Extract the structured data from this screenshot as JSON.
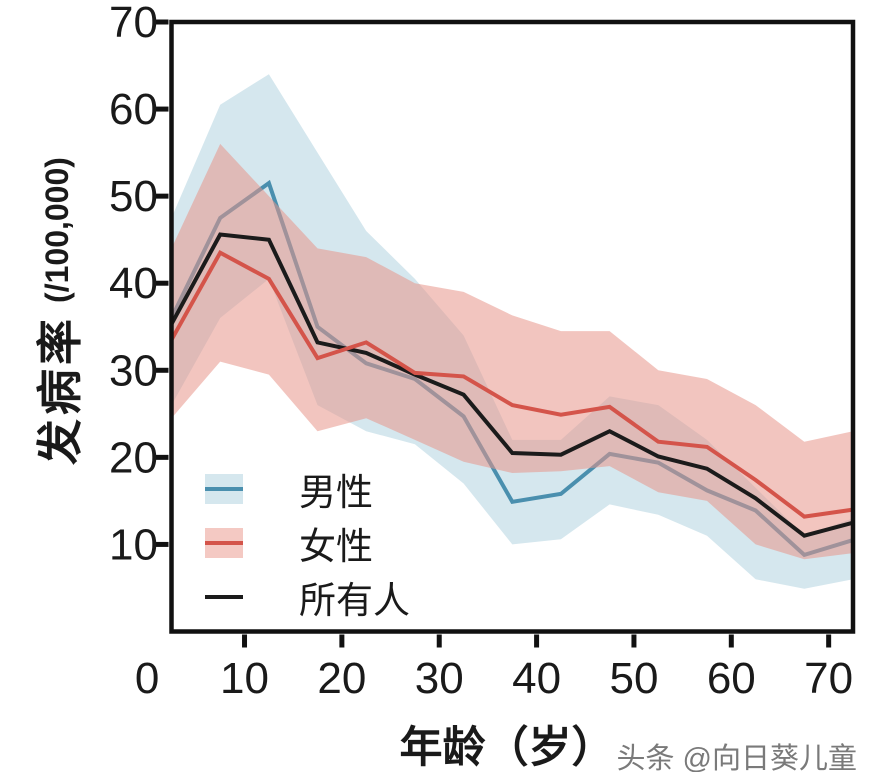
{
  "page": {
    "background": "#ffffff"
  },
  "watermark": {
    "text": "头条 @向日葵儿童",
    "color": "#7a7a7a"
  },
  "chart_data": {
    "type": "line",
    "title": "",
    "x_label": "年龄（岁）",
    "y_label_main": "发病率",
    "y_label_unit": "(/100,000)",
    "x_domain": [
      2.5,
      72.5
    ],
    "y_domain": [
      0,
      70
    ],
    "grid": false,
    "legend_position": "inside-bottom-left",
    "x_ticks": [
      0,
      10,
      20,
      30,
      40,
      50,
      60,
      70
    ],
    "x_tick_labels": [
      "0",
      "10",
      "20",
      "30",
      "40",
      "50",
      "60",
      "70"
    ],
    "y_ticks": [
      10,
      20,
      30,
      40,
      50,
      60,
      70
    ],
    "y_tick_labels": [
      "10",
      "20",
      "30",
      "40",
      "50",
      "60",
      "70"
    ],
    "ages": [
      2.5,
      7.5,
      12.5,
      17.5,
      22.5,
      27.5,
      32.5,
      37.5,
      42.5,
      47.5,
      52.5,
      57.5,
      62.5,
      67.5,
      72.5
    ],
    "series": [
      {
        "name": "男性",
        "color": "#4a8fae",
        "band_color": "#d5e7ee",
        "band_fill": "#d5e7ee",
        "band_opacity": 1,
        "values": [
          36.0,
          47.5,
          51.5,
          35.0,
          30.8,
          29.0,
          24.7,
          14.9,
          15.8,
          20.4,
          19.4,
          16.2,
          13.9,
          8.8,
          10.5
        ],
        "band_high": [
          47.5,
          60.5,
          64.0,
          55.0,
          46.0,
          40.5,
          34.0,
          22.0,
          22.0,
          27.0,
          26.0,
          22.0,
          16.5,
          11.0,
          13.0
        ],
        "band_low": [
          26.0,
          36.0,
          40.5,
          26.0,
          23.0,
          21.5,
          17.0,
          10.0,
          10.6,
          14.6,
          13.4,
          11.0,
          6.0,
          4.9,
          6.0
        ]
      },
      {
        "name": "女性",
        "color": "#d4544a",
        "band_color": "#f4c9c3",
        "band_fill": "#e8968a",
        "band_opacity": 0.55,
        "values": [
          33.5,
          43.5,
          40.5,
          31.4,
          33.2,
          29.7,
          29.3,
          26.0,
          24.9,
          25.8,
          21.8,
          21.2,
          17.4,
          13.2,
          14.0
        ],
        "band_high": [
          44.0,
          56.0,
          50.0,
          44.0,
          43.0,
          40.0,
          39.0,
          36.3,
          34.5,
          34.5,
          30.0,
          29.0,
          26.0,
          21.8,
          23.0
        ],
        "band_low": [
          24.5,
          31.0,
          29.5,
          23.0,
          24.5,
          22.0,
          19.5,
          18.2,
          18.4,
          19.0,
          16.0,
          15.0,
          10.0,
          8.3,
          9.0
        ]
      },
      {
        "name": "所有人",
        "color": "#1b1b1b",
        "values": [
          35.3,
          45.6,
          45.0,
          33.2,
          32.0,
          29.5,
          27.2,
          20.5,
          20.3,
          23.0,
          20.1,
          18.7,
          15.3,
          11.0,
          12.5
        ]
      }
    ]
  }
}
